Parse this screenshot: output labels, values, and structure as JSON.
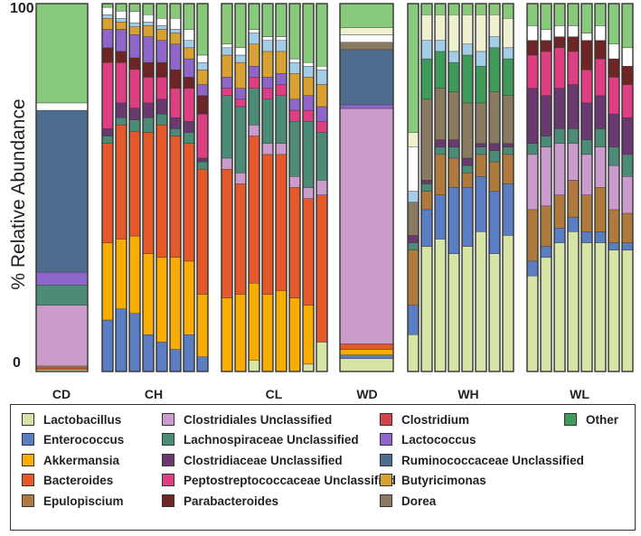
{
  "chart_data": {
    "type": "bar",
    "stacked": true,
    "ylabel": "% Relative Abundance",
    "yticks": [
      "0",
      "100"
    ],
    "ylim": [
      0,
      100
    ],
    "groups": [
      {
        "name": "CD",
        "bars": [
          [
            0.5,
            0,
            0,
            0.5,
            0.5,
            16.5,
            5.5,
            0,
            0,
            0,
            0,
            3.5,
            0,
            44,
            0,
            0,
            0,
            2,
            0,
            27
          ]
        ]
      },
      {
        "name": "CH",
        "bars": [
          [
            0,
            14,
            21,
            27,
            0,
            0,
            2,
            2,
            18,
            4,
            0,
            5,
            3,
            0,
            0,
            0,
            1,
            2,
            0,
            1
          ],
          [
            0,
            17,
            19,
            31,
            0,
            0,
            2,
            4,
            11,
            3,
            0,
            6,
            2,
            0,
            0,
            0,
            1,
            2,
            0,
            2
          ],
          [
            0,
            15,
            20,
            27,
            0,
            0,
            3,
            3,
            10,
            3,
            0,
            6,
            2,
            0,
            0,
            0,
            1,
            3,
            0,
            2
          ],
          [
            0,
            10,
            22,
            33,
            0,
            0,
            4,
            4,
            7,
            4,
            0,
            7,
            3,
            0,
            0,
            0,
            1,
            2,
            0,
            3
          ],
          [
            0,
            8,
            23,
            36,
            0,
            0,
            3,
            4,
            6,
            4,
            0,
            6,
            3,
            0,
            0,
            0,
            1,
            2,
            0,
            4
          ],
          [
            0,
            6,
            25,
            33,
            0,
            0,
            2,
            3,
            8,
            5,
            0,
            7,
            3,
            0,
            0,
            0,
            1,
            3,
            0,
            4
          ],
          [
            0,
            10,
            20,
            32,
            0,
            0,
            3,
            3,
            9,
            3,
            0,
            5,
            3,
            0,
            0,
            0,
            2,
            3,
            0,
            7
          ],
          [
            0,
            4,
            17,
            34,
            0,
            0,
            2,
            1,
            12,
            5,
            0,
            3,
            4,
            0,
            0,
            0,
            2,
            2,
            0,
            14
          ]
        ]
      },
      {
        "name": "CL",
        "bars": [
          [
            0,
            0,
            20,
            35,
            0,
            3,
            17,
            0,
            2,
            0,
            0,
            3,
            6,
            0,
            0,
            0,
            2,
            1,
            0,
            11
          ],
          [
            0,
            0,
            21,
            30,
            0,
            3,
            18,
            0,
            2,
            0,
            0,
            3,
            7,
            0,
            0,
            0,
            2,
            2,
            0,
            12
          ],
          [
            3,
            0,
            21,
            40,
            0,
            3,
            10,
            0,
            3,
            0,
            0,
            3,
            6,
            0,
            0,
            0,
            3,
            1,
            0,
            7
          ],
          [
            0,
            0,
            21,
            38,
            0,
            3,
            12,
            0,
            3,
            0,
            0,
            3,
            7,
            0,
            0,
            0,
            3,
            1,
            0,
            9
          ],
          [
            0,
            0,
            22,
            37,
            0,
            3,
            13,
            0,
            3,
            0,
            0,
            3,
            6,
            0,
            0,
            0,
            3,
            1,
            0,
            9
          ],
          [
            0,
            0,
            20,
            30,
            0,
            3,
            15,
            0,
            3,
            0,
            0,
            3,
            7,
            0,
            0,
            0,
            3,
            1,
            0,
            15
          ],
          [
            2,
            0,
            16,
            29,
            0,
            3,
            18,
            0,
            3,
            0,
            0,
            4,
            5,
            0,
            0,
            0,
            3,
            1,
            0,
            16
          ],
          [
            8,
            0,
            0,
            40,
            0,
            4,
            13,
            0,
            3,
            0,
            0,
            4,
            6,
            0,
            0,
            0,
            4,
            1,
            0,
            17
          ]
        ]
      },
      {
        "name": "WD",
        "bars": [
          [
            3.5,
            1,
            1.5,
            1.5,
            0,
            64,
            0,
            0,
            0,
            0,
            0,
            1,
            0,
            15,
            2,
            0,
            0,
            2,
            2,
            6.5
          ]
        ]
      },
      {
        "name": "WH",
        "bars": [
          [
            10,
            8,
            0,
            0,
            15,
            0,
            2,
            2,
            0,
            0,
            0,
            0,
            0,
            0,
            9,
            0,
            3,
            12,
            4,
            35
          ],
          [
            34,
            10,
            0,
            0,
            5,
            0,
            2,
            1,
            0,
            0,
            0,
            0,
            0,
            0,
            22,
            11,
            5,
            0,
            7,
            3
          ],
          [
            36,
            12,
            0,
            0,
            11,
            0,
            2,
            2,
            0,
            0,
            0,
            0,
            0,
            0,
            14,
            10,
            3,
            0,
            7,
            3
          ],
          [
            32,
            18,
            0,
            0,
            8,
            0,
            3,
            2,
            0,
            0,
            0,
            0,
            0,
            0,
            13,
            8,
            3,
            0,
            10,
            3
          ],
          [
            34,
            16,
            0,
            0,
            4,
            0,
            2,
            2,
            0,
            0,
            0,
            0,
            0,
            0,
            15,
            13,
            3,
            0,
            8,
            3
          ],
          [
            38,
            15,
            0,
            0,
            6,
            0,
            2,
            1,
            0,
            0,
            0,
            0,
            0,
            0,
            11,
            10,
            4,
            0,
            10,
            3
          ],
          [
            32,
            17,
            0,
            0,
            8,
            0,
            3,
            2,
            0,
            0,
            0,
            0,
            0,
            0,
            14,
            12,
            3,
            0,
            6,
            3
          ],
          [
            37,
            14,
            0,
            0,
            8,
            0,
            2,
            1,
            0,
            0,
            0,
            0,
            0,
            0,
            13,
            10,
            3,
            0,
            8,
            4
          ]
        ]
      },
      {
        "name": "WL",
        "bars": [
          [
            26,
            4,
            0,
            0,
            14,
            15,
            3,
            15,
            9,
            4,
            0,
            0,
            0,
            0,
            0,
            0,
            0,
            4,
            0,
            6
          ],
          [
            31,
            3,
            0,
            0,
            11,
            16,
            3,
            11,
            12,
            3,
            0,
            0,
            0,
            0,
            0,
            0,
            0,
            3,
            0,
            7
          ],
          [
            35,
            4,
            0,
            0,
            9,
            14,
            4,
            11,
            11,
            3,
            0,
            0,
            0,
            0,
            0,
            0,
            0,
            3,
            0,
            6
          ],
          [
            38,
            4,
            0,
            0,
            10,
            10,
            4,
            12,
            9,
            4,
            0,
            0,
            0,
            0,
            0,
            0,
            0,
            3,
            0,
            6
          ],
          [
            35,
            3,
            0,
            0,
            10,
            11,
            4,
            10,
            9,
            8,
            0,
            0,
            0,
            0,
            0,
            0,
            0,
            2,
            0,
            8
          ],
          [
            35,
            3,
            0,
            0,
            12,
            11,
            5,
            9,
            10,
            5,
            0,
            0,
            0,
            0,
            0,
            0,
            0,
            4,
            0,
            6
          ],
          [
            33,
            2,
            0,
            0,
            9,
            12,
            5,
            9,
            10,
            5,
            0,
            0,
            0,
            0,
            0,
            0,
            0,
            4,
            0,
            11
          ],
          [
            33,
            2,
            0,
            0,
            8,
            10,
            6,
            10,
            9,
            5,
            0,
            0,
            0,
            0,
            0,
            0,
            0,
            5,
            0,
            12
          ]
        ]
      }
    ],
    "stack_order": [
      "Lactobacillus",
      "Enterococcus",
      "Akkermansia",
      "Bacteroides",
      "Epulopiscium",
      "Clostridiales Unclassified",
      "Lachnospiraceae Unclassified",
      "Clostridiaceae Unclassified",
      "Peptostreptococcaceae Unclassified",
      "Parabacteroides",
      "Clostridium",
      "Lactococcus",
      "Butyricimonas",
      "Ruminococcaceae Unclassified",
      "Dorea",
      "Other",
      "Light Blue",
      "White",
      "Ivory",
      "Light Green"
    ]
  },
  "legend": [
    {
      "label": "Lactobacillus",
      "color": "#d6e4a5"
    },
    {
      "label": "Enterococcus",
      "color": "#5b7ec3"
    },
    {
      "label": "Akkermansia",
      "color": "#f9ad00"
    },
    {
      "label": "Bacteroides",
      "color": "#e5582a"
    },
    {
      "label": "Epulopiscium",
      "color": "#b07a3f"
    },
    {
      "label": "Clostridiales Unclassified",
      "color": "#cb9ccb"
    },
    {
      "label": "Lachnospiraceae Unclassified",
      "color": "#4c8b78"
    },
    {
      "label": "Clostridiaceae Unclassified",
      "color": "#6a3970"
    },
    {
      "label": "Peptostreptococcaceae Unclassified",
      "color": "#de3f82"
    },
    {
      "label": "Parabacteroides",
      "color": "#6e2525"
    },
    {
      "label": "Clostridium",
      "color": "#d3434a"
    },
    {
      "label": "Lactococcus",
      "color": "#8e65c8"
    },
    {
      "label": "Ruminococcaceae Unclassified",
      "color": "#4e6c8e"
    },
    {
      "label": "Butyricimonas",
      "color": "#d8a132"
    },
    {
      "label": "Dorea",
      "color": "#8a7a61"
    },
    {
      "label": "Other",
      "color": "#409a5a"
    }
  ],
  "extra_colors": {
    "Light Blue": "#a3cde6",
    "White": "#ffffff",
    "Ivory": "#eef0d0",
    "Light Green": "#88c97c"
  }
}
